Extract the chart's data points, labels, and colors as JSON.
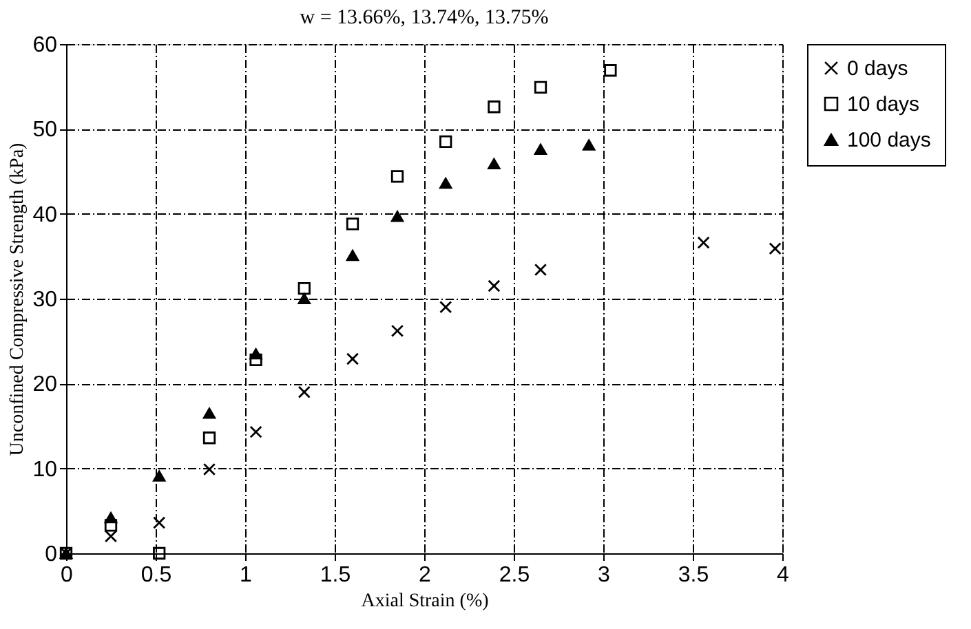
{
  "chart_data": {
    "type": "scatter",
    "title": "w = 13.66%,  13.74%,  13.75%",
    "xlabel": "Axial Strain (%)",
    "ylabel": "Unconfined Compressive Strength (kPa)",
    "xlim": [
      0,
      4
    ],
    "xticks": [
      0,
      0.5,
      1,
      1.5,
      2,
      2.5,
      3,
      3.5,
      4
    ],
    "ylim": [
      0,
      60
    ],
    "yticks": [
      0,
      10,
      20,
      30,
      40,
      50,
      60
    ],
    "grid": true,
    "legend": "right",
    "series": [
      {
        "name": "0 days",
        "color": "#000000",
        "marker": "cross",
        "x": [
          0,
          0.25,
          0.52,
          0.8,
          1.06,
          1.33,
          1.6,
          1.85,
          2.12,
          2.39,
          2.65,
          3.56,
          3.96
        ],
        "values": [
          0,
          2.0,
          3.6,
          9.9,
          14.3,
          19.0,
          22.9,
          26.2,
          29.0,
          31.5,
          33.4,
          36.6,
          35.9
        ]
      },
      {
        "name": "10 days",
        "color": "#000000",
        "marker": "square",
        "x": [
          0,
          0.25,
          0.52,
          0.8,
          1.06,
          1.33,
          1.6,
          1.85,
          2.12,
          2.39,
          2.65,
          3.04
        ],
        "values": [
          0,
          3.3,
          0,
          13.6,
          22.8,
          31.2,
          38.8,
          44.4,
          48.5,
          52.6,
          54.9,
          56.9
        ]
      },
      {
        "name": "100 days",
        "color": "#000000",
        "marker": "triangle",
        "x": [
          0,
          0.25,
          0.52,
          0.8,
          1.06,
          1.33,
          1.6,
          1.85,
          2.12,
          2.39,
          2.65,
          2.92
        ],
        "values": [
          0,
          4.2,
          9.1,
          16.5,
          23.5,
          30.0,
          35.1,
          39.7,
          43.6,
          45.9,
          47.6,
          48.1
        ]
      }
    ]
  }
}
